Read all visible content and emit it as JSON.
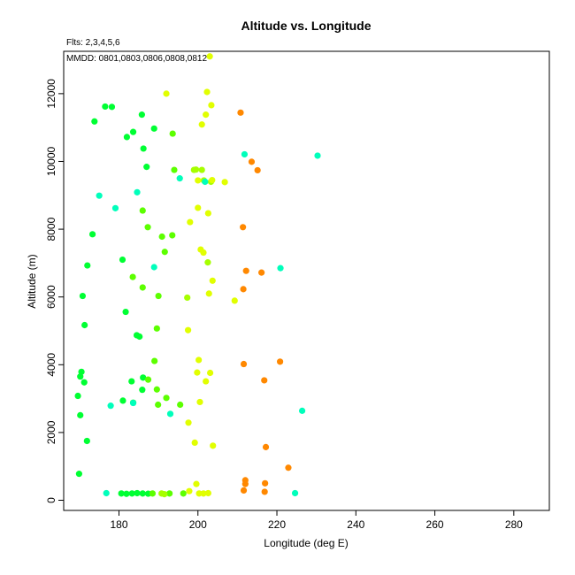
{
  "chart_data": {
    "type": "scatter",
    "title": "Altitude vs. Longitude",
    "notes": [
      "Flts: 2,3,4,5,6",
      "MMDD: 0801,0803,0806,0808,0812"
    ],
    "xlabel": "Longitude (deg E)",
    "ylabel": "Altitude (m)",
    "xlim": [
      166,
      289
    ],
    "ylim": [
      -300,
      13250
    ],
    "xticks": [
      180,
      200,
      220,
      240,
      260,
      280
    ],
    "yticks": [
      0,
      2000,
      4000,
      6000,
      8000,
      10000,
      12000
    ],
    "grid": false,
    "series": [
      {
        "color": "#00ff33",
        "points": [
          [
            176.5,
            11620
          ],
          [
            178.2,
            11610
          ],
          [
            173.8,
            11180
          ],
          [
            182.0,
            10720
          ],
          [
            183.6,
            10870
          ],
          [
            185.8,
            11380
          ],
          [
            186.2,
            10380
          ],
          [
            187.0,
            9840
          ],
          [
            188.9,
            10970
          ],
          [
            169.9,
            780
          ],
          [
            169.6,
            3080
          ],
          [
            170.2,
            2510
          ],
          [
            170.5,
            3790
          ],
          [
            170.2,
            3650
          ],
          [
            171.2,
            3480
          ],
          [
            171.9,
            1750
          ],
          [
            170.8,
            6030
          ],
          [
            171.3,
            5170
          ],
          [
            172.0,
            6930
          ],
          [
            173.3,
            7850
          ],
          [
            180.9,
            7100
          ],
          [
            181.7,
            5560
          ],
          [
            183.2,
            3510
          ],
          [
            184.5,
            4870
          ],
          [
            185.2,
            4830
          ],
          [
            186.1,
            3620
          ],
          [
            185.9,
            3260
          ],
          [
            181.0,
            2940
          ],
          [
            183.6,
            2880
          ],
          [
            180.6,
            200
          ],
          [
            181.9,
            190
          ],
          [
            183.3,
            200
          ],
          [
            184.6,
            210
          ],
          [
            186.0,
            200
          ],
          [
            187.4,
            195
          ]
        ]
      },
      {
        "color": "#5cff00",
        "points": [
          [
            186.0,
            8550
          ],
          [
            187.3,
            8060
          ],
          [
            190.9,
            7780
          ],
          [
            193.5,
            7820
          ],
          [
            191.6,
            7330
          ],
          [
            183.5,
            6590
          ],
          [
            186.0,
            6280
          ],
          [
            190.0,
            6030
          ],
          [
            189.6,
            5070
          ],
          [
            189.0,
            4110
          ],
          [
            187.4,
            3560
          ],
          [
            189.6,
            3270
          ],
          [
            189.9,
            2820
          ],
          [
            192.0,
            3020
          ],
          [
            195.5,
            2820
          ],
          [
            193.6,
            10820
          ],
          [
            194.0,
            9750
          ],
          [
            196.3,
            200
          ],
          [
            188.5,
            200
          ],
          [
            192.8,
            200
          ]
        ]
      },
      {
        "color": "#a6ff00",
        "points": [
          [
            190.8,
            200
          ],
          [
            191.5,
            180
          ],
          [
            197.3,
            5980
          ],
          [
            199.0,
            9750
          ],
          [
            199.5,
            9760
          ],
          [
            201.0,
            9750
          ],
          [
            201.5,
            9440
          ],
          [
            202.5,
            7020
          ],
          [
            203.3,
            9400
          ]
        ]
      },
      {
        "color": "#e1ff00",
        "points": [
          [
            192.0,
            12000
          ],
          [
            201.0,
            11090
          ],
          [
            202.0,
            11380
          ],
          [
            202.3,
            12050
          ],
          [
            203.4,
            11660
          ],
          [
            203.0,
            13100
          ],
          [
            200.0,
            9440
          ],
          [
            203.6,
            9450
          ],
          [
            206.8,
            9390
          ],
          [
            200.0,
            8630
          ],
          [
            202.6,
            8470
          ],
          [
            198.0,
            8210
          ],
          [
            200.7,
            7400
          ],
          [
            201.4,
            7310
          ],
          [
            203.7,
            6480
          ],
          [
            202.8,
            6100
          ],
          [
            209.3,
            5890
          ],
          [
            197.5,
            5020
          ],
          [
            200.2,
            4140
          ],
          [
            203.1,
            3760
          ],
          [
            199.8,
            3770
          ],
          [
            202.0,
            3510
          ],
          [
            200.5,
            2900
          ],
          [
            197.6,
            2290
          ],
          [
            199.2,
            1700
          ],
          [
            203.8,
            1610
          ],
          [
            199.6,
            480
          ],
          [
            197.8,
            270
          ],
          [
            200.3,
            200
          ],
          [
            201.4,
            200
          ],
          [
            202.6,
            210
          ]
        ]
      },
      {
        "color": "#00ffbb",
        "points": [
          [
            175.0,
            8990
          ],
          [
            179.1,
            8620
          ],
          [
            184.6,
            9090
          ],
          [
            195.4,
            9500
          ],
          [
            201.8,
            9400
          ],
          [
            211.8,
            10210
          ],
          [
            230.3,
            10170
          ],
          [
            188.9,
            6880
          ],
          [
            220.9,
            6850
          ],
          [
            177.9,
            2790
          ],
          [
            183.6,
            2870
          ],
          [
            193.0,
            2550
          ],
          [
            226.4,
            2640
          ],
          [
            176.8,
            210
          ],
          [
            224.6,
            210
          ]
        ]
      },
      {
        "color": "#ff8800",
        "points": [
          [
            210.8,
            11440
          ],
          [
            213.6,
            9990
          ],
          [
            215.1,
            9740
          ],
          [
            211.4,
            8060
          ],
          [
            212.2,
            6770
          ],
          [
            216.1,
            6720
          ],
          [
            211.5,
            6230
          ],
          [
            211.6,
            4020
          ],
          [
            220.8,
            4090
          ],
          [
            216.8,
            3540
          ],
          [
            217.2,
            1570
          ],
          [
            222.9,
            960
          ],
          [
            212.0,
            590
          ],
          [
            212.0,
            480
          ],
          [
            217.0,
            500
          ],
          [
            211.6,
            290
          ],
          [
            216.9,
            250
          ]
        ]
      }
    ]
  }
}
